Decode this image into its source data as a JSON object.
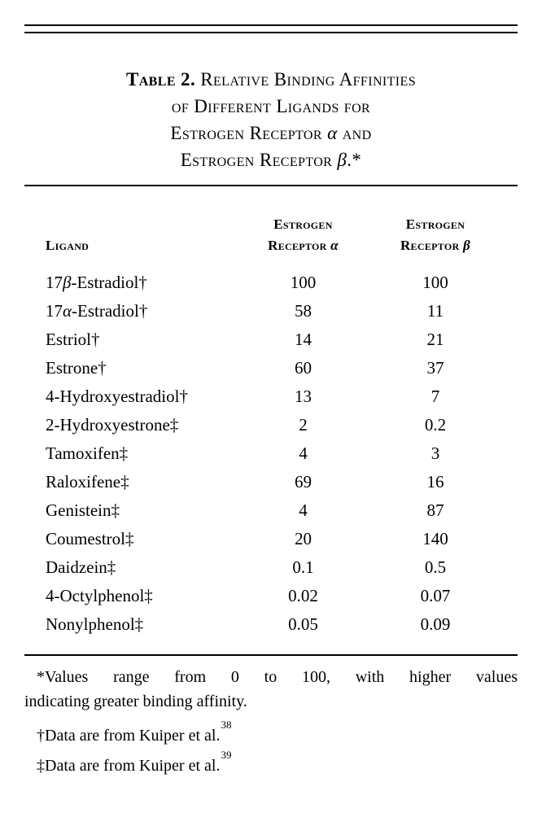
{
  "title": {
    "label": "Table 2.",
    "rest_line1": "Relative Binding Affinities",
    "line2": "of Different Ligands for",
    "line3": "Estrogen Receptor α and",
    "line4": "Estrogen Receptor β.*"
  },
  "headers": {
    "ligand": "Ligand",
    "er_alpha": [
      "Estrogen",
      "Receptor α"
    ],
    "er_beta": [
      "Estrogen",
      "Receptor β"
    ]
  },
  "rows": [
    {
      "ligand": "17β-Estradiol†",
      "er_alpha": "100",
      "er_beta": "100"
    },
    {
      "ligand": "17α-Estradiol†",
      "er_alpha": "58",
      "er_beta": "11"
    },
    {
      "ligand": "Estriol†",
      "er_alpha": "14",
      "er_beta": "21"
    },
    {
      "ligand": "Estrone†",
      "er_alpha": "60",
      "er_beta": "37"
    },
    {
      "ligand": "4-Hydroxyestradiol†",
      "er_alpha": "13",
      "er_beta": "7"
    },
    {
      "ligand": "2-Hydroxyestrone‡",
      "er_alpha": "2",
      "er_beta": "0.2"
    },
    {
      "ligand": "Tamoxifen‡",
      "er_alpha": "4",
      "er_beta": "3"
    },
    {
      "ligand": "Raloxifene‡",
      "er_alpha": "69",
      "er_beta": "16"
    },
    {
      "ligand": "Genistein‡",
      "er_alpha": "4",
      "er_beta": "87"
    },
    {
      "ligand": "Coumestrol‡",
      "er_alpha": "20",
      "er_beta": "140"
    },
    {
      "ligand": "Daidzein‡",
      "er_alpha": "0.1",
      "er_beta": "0.5"
    },
    {
      "ligand": "4-Octylphenol‡",
      "er_alpha": "0.02",
      "er_beta": "0.07"
    },
    {
      "ligand": "Nonylphenol‡",
      "er_alpha": "0.05",
      "er_beta": "0.09"
    }
  ],
  "footnotes": {
    "star_line1": "*Values range from 0 to 100, with higher values",
    "star_line2": "indicating greater binding affinity.",
    "dagger_text": "†Data are from Kuiper et al.",
    "dagger_ref": "38",
    "double_dagger_text": "‡Data are from Kuiper et al.",
    "double_dagger_ref": "39"
  },
  "chart_data": {
    "type": "table",
    "title": "Table 2. Relative Binding Affinities of Different Ligands for Estrogen Receptor α and Estrogen Receptor β.",
    "columns": [
      "Ligand",
      "Estrogen Receptor α",
      "Estrogen Receptor β"
    ],
    "rows": [
      [
        "17β-Estradiol†",
        100,
        100
      ],
      [
        "17α-Estradiol†",
        58,
        11
      ],
      [
        "Estriol†",
        14,
        21
      ],
      [
        "Estrone†",
        60,
        37
      ],
      [
        "4-Hydroxyestradiol†",
        13,
        7
      ],
      [
        "2-Hydroxyestrone‡",
        2,
        0.2
      ],
      [
        "Tamoxifen‡",
        4,
        3
      ],
      [
        "Raloxifene‡",
        69,
        16
      ],
      [
        "Genistein‡",
        4,
        87
      ],
      [
        "Coumestrol‡",
        20,
        140
      ],
      [
        "Daidzein‡",
        0.1,
        0.5
      ],
      [
        "4-Octylphenol‡",
        0.02,
        0.07
      ],
      [
        "Nonylphenol‡",
        0.05,
        0.09
      ]
    ]
  }
}
